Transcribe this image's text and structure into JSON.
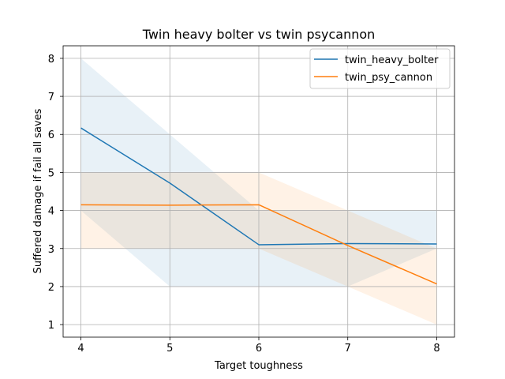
{
  "chart_data": {
    "type": "line",
    "title": "Twin heavy bolter vs twin psycannon",
    "xlabel": "Target toughness",
    "ylabel": "Suffered damage if fail all saves",
    "x": [
      4,
      5,
      6,
      7,
      8
    ],
    "xlim": [
      3.8,
      8.2
    ],
    "ylim": [
      0.67,
      8.33
    ],
    "xticks": [
      4,
      5,
      6,
      7,
      8
    ],
    "yticks": [
      1,
      2,
      3,
      4,
      5,
      6,
      7,
      8
    ],
    "grid": true,
    "legend_position": "upper right",
    "series": [
      {
        "name": "twin_heavy_bolter",
        "color": "#1f77b4",
        "values": [
          6.17,
          4.72,
          3.1,
          3.13,
          3.12
        ],
        "band_lower": [
          4,
          2,
          2,
          2,
          3
        ],
        "band_upper": [
          8,
          6,
          4,
          4,
          4
        ]
      },
      {
        "name": "twin_psy_cannon",
        "color": "#ff7f0e",
        "values": [
          4.15,
          4.14,
          4.15,
          3.08,
          2.07
        ],
        "band_lower": [
          3,
          3,
          3,
          2,
          1
        ],
        "band_upper": [
          5,
          5,
          5,
          4,
          3
        ]
      }
    ]
  }
}
